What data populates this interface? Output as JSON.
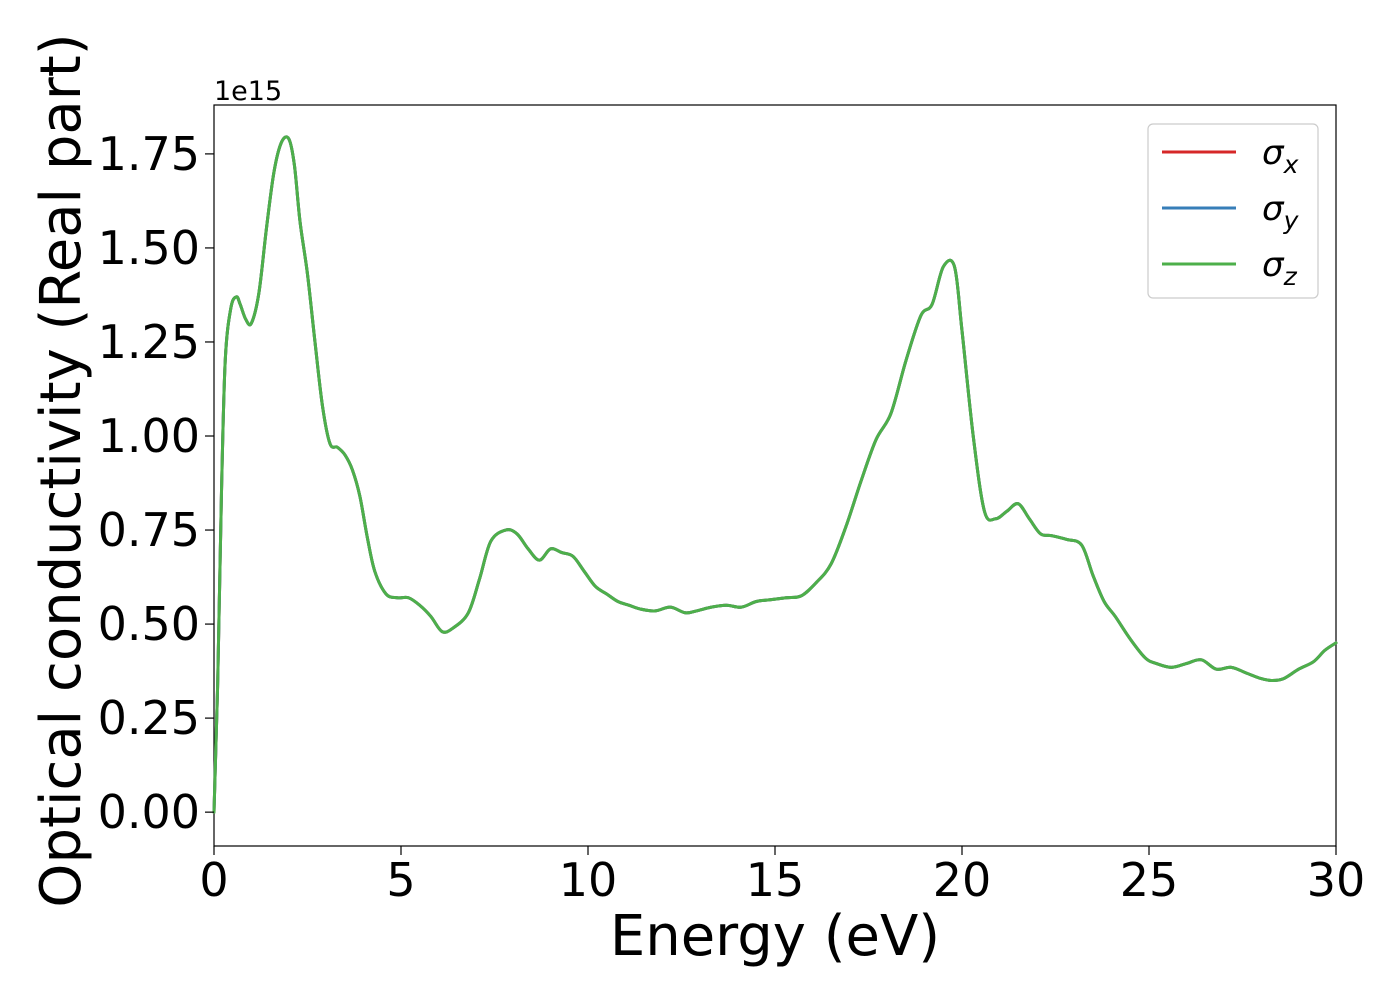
{
  "chart_data": {
    "type": "line",
    "xlabel": "Energy (eV)",
    "ylabel": "Optical conductivity (Real part)",
    "y_offset_text": "1e15",
    "xlim": [
      0,
      30
    ],
    "ylim": [
      -0.09,
      1.88
    ],
    "y_multiplier": 1000000000000000.0,
    "x_ticks": [
      0,
      5,
      10,
      15,
      20,
      25,
      30
    ],
    "x_tick_labels": [
      "0",
      "5",
      "10",
      "15",
      "20",
      "25",
      "30"
    ],
    "y_ticks": [
      0.0,
      0.25,
      0.5,
      0.75,
      1.0,
      1.25,
      1.5,
      1.75
    ],
    "y_tick_labels": [
      "0.00",
      "0.25",
      "0.50",
      "0.75",
      "1.00",
      "1.25",
      "1.50",
      "1.75"
    ],
    "grid": false,
    "legend_placement": "top-right",
    "x": [
      0.0,
      0.1,
      0.2,
      0.3,
      0.45,
      0.6,
      0.7,
      0.85,
      1.0,
      1.2,
      1.4,
      1.6,
      1.8,
      2.0,
      2.15,
      2.3,
      2.5,
      2.7,
      2.9,
      3.1,
      3.3,
      3.5,
      3.7,
      3.9,
      4.1,
      4.3,
      4.6,
      4.9,
      5.2,
      5.5,
      5.8,
      6.1,
      6.4,
      6.8,
      7.1,
      7.4,
      7.8,
      8.1,
      8.4,
      8.7,
      9.0,
      9.3,
      9.6,
      9.9,
      10.2,
      10.5,
      10.8,
      11.1,
      11.4,
      11.8,
      12.2,
      12.6,
      12.9,
      13.3,
      13.7,
      14.1,
      14.5,
      14.9,
      15.3,
      15.7,
      16.1,
      16.5,
      16.9,
      17.3,
      17.7,
      18.1,
      18.5,
      18.9,
      19.2,
      19.5,
      19.8,
      20.0,
      20.3,
      20.6,
      20.9,
      21.2,
      21.5,
      21.8,
      22.1,
      22.4,
      22.8,
      23.2,
      23.5,
      23.8,
      24.1,
      24.5,
      24.9,
      25.2,
      25.6,
      26.0,
      26.4,
      26.8,
      27.2,
      27.6,
      28.0,
      28.3,
      28.6,
      29.0,
      29.4,
      29.7,
      30.0
    ],
    "series": [
      {
        "name": "σx",
        "color": "#d62728",
        "values": [
          0.0,
          0.35,
          0.85,
          1.2,
          1.34,
          1.37,
          1.35,
          1.31,
          1.3,
          1.38,
          1.55,
          1.7,
          1.78,
          1.79,
          1.72,
          1.57,
          1.43,
          1.25,
          1.08,
          0.98,
          0.97,
          0.95,
          0.91,
          0.84,
          0.73,
          0.64,
          0.58,
          0.57,
          0.57,
          0.55,
          0.52,
          0.48,
          0.49,
          0.53,
          0.62,
          0.72,
          0.75,
          0.74,
          0.7,
          0.67,
          0.7,
          0.69,
          0.68,
          0.64,
          0.6,
          0.58,
          0.56,
          0.55,
          0.54,
          0.535,
          0.545,
          0.53,
          0.535,
          0.545,
          0.55,
          0.545,
          0.56,
          0.565,
          0.57,
          0.575,
          0.61,
          0.66,
          0.76,
          0.88,
          0.99,
          1.06,
          1.2,
          1.32,
          1.35,
          1.45,
          1.45,
          1.28,
          1.0,
          0.8,
          0.78,
          0.8,
          0.82,
          0.78,
          0.74,
          0.735,
          0.725,
          0.71,
          0.63,
          0.56,
          0.52,
          0.46,
          0.41,
          0.395,
          0.385,
          0.395,
          0.405,
          0.38,
          0.385,
          0.37,
          0.355,
          0.35,
          0.355,
          0.38,
          0.4,
          0.43,
          0.45
        ]
      },
      {
        "name": "σy",
        "color": "#377eb8",
        "values": [
          0.0,
          0.35,
          0.85,
          1.2,
          1.34,
          1.37,
          1.35,
          1.31,
          1.3,
          1.38,
          1.55,
          1.7,
          1.78,
          1.79,
          1.72,
          1.57,
          1.43,
          1.25,
          1.08,
          0.98,
          0.97,
          0.95,
          0.91,
          0.84,
          0.73,
          0.64,
          0.58,
          0.57,
          0.57,
          0.55,
          0.52,
          0.48,
          0.49,
          0.53,
          0.62,
          0.72,
          0.75,
          0.74,
          0.7,
          0.67,
          0.7,
          0.69,
          0.68,
          0.64,
          0.6,
          0.58,
          0.56,
          0.55,
          0.54,
          0.535,
          0.545,
          0.53,
          0.535,
          0.545,
          0.55,
          0.545,
          0.56,
          0.565,
          0.57,
          0.575,
          0.61,
          0.66,
          0.76,
          0.88,
          0.99,
          1.06,
          1.2,
          1.32,
          1.35,
          1.45,
          1.45,
          1.28,
          1.0,
          0.8,
          0.78,
          0.8,
          0.82,
          0.78,
          0.74,
          0.735,
          0.725,
          0.71,
          0.63,
          0.56,
          0.52,
          0.46,
          0.41,
          0.395,
          0.385,
          0.395,
          0.405,
          0.38,
          0.385,
          0.37,
          0.355,
          0.35,
          0.355,
          0.38,
          0.4,
          0.43,
          0.45
        ]
      },
      {
        "name": "σz",
        "color": "#4daf4a",
        "values": [
          0.0,
          0.35,
          0.85,
          1.2,
          1.34,
          1.37,
          1.35,
          1.31,
          1.3,
          1.38,
          1.55,
          1.7,
          1.78,
          1.79,
          1.72,
          1.57,
          1.43,
          1.25,
          1.08,
          0.98,
          0.97,
          0.95,
          0.91,
          0.84,
          0.73,
          0.64,
          0.58,
          0.57,
          0.57,
          0.55,
          0.52,
          0.48,
          0.49,
          0.53,
          0.62,
          0.72,
          0.75,
          0.74,
          0.7,
          0.67,
          0.7,
          0.69,
          0.68,
          0.64,
          0.6,
          0.58,
          0.56,
          0.55,
          0.54,
          0.535,
          0.545,
          0.53,
          0.535,
          0.545,
          0.55,
          0.545,
          0.56,
          0.565,
          0.57,
          0.575,
          0.61,
          0.66,
          0.76,
          0.88,
          0.99,
          1.06,
          1.2,
          1.32,
          1.35,
          1.45,
          1.45,
          1.28,
          1.0,
          0.8,
          0.78,
          0.8,
          0.82,
          0.78,
          0.74,
          0.735,
          0.725,
          0.71,
          0.63,
          0.56,
          0.52,
          0.46,
          0.41,
          0.395,
          0.385,
          0.395,
          0.405,
          0.38,
          0.385,
          0.37,
          0.355,
          0.35,
          0.355,
          0.38,
          0.4,
          0.43,
          0.45
        ]
      }
    ],
    "legend": [
      {
        "symbol": "σ",
        "sub": "x",
        "color": "#d62728"
      },
      {
        "symbol": "σ",
        "sub": "y",
        "color": "#377eb8"
      },
      {
        "symbol": "σ",
        "sub": "z",
        "color": "#4daf4a"
      }
    ]
  }
}
